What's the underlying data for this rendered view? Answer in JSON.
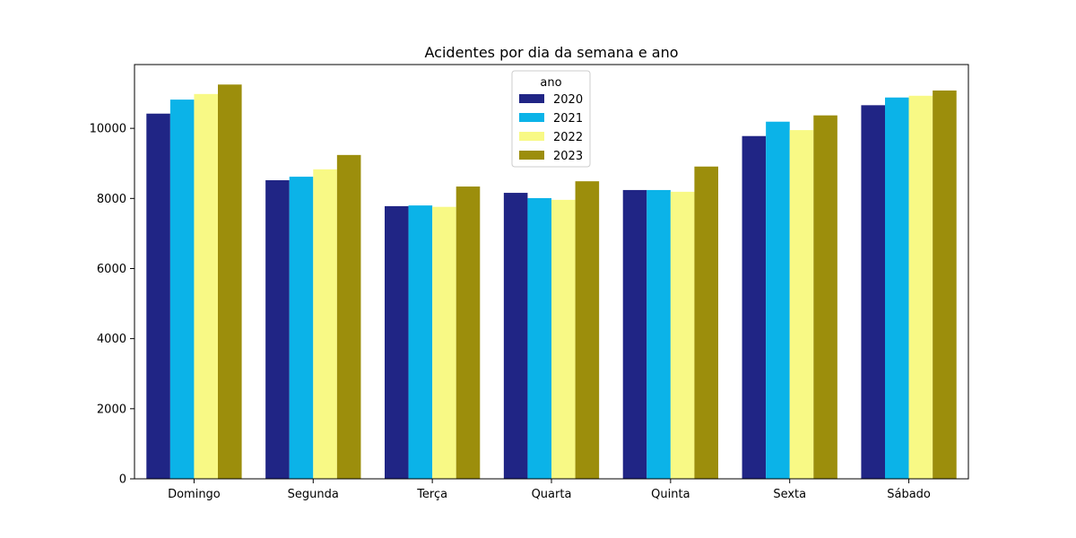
{
  "chart_data": {
    "type": "bar",
    "title": "Acidentes por dia da semana e ano",
    "xlabel": "",
    "ylabel": "",
    "categories": [
      "Domingo",
      "Segunda",
      "Terça",
      "Quarta",
      "Quinta",
      "Sexta",
      "Sábado"
    ],
    "series": [
      {
        "name": "2020",
        "color": "#202585",
        "values": [
          10420,
          8520,
          7780,
          8160,
          8240,
          9780,
          10660
        ]
      },
      {
        "name": "2021",
        "color": "#0bb3e8",
        "values": [
          10820,
          8620,
          7800,
          8010,
          8240,
          10190,
          10880
        ]
      },
      {
        "name": "2022",
        "color": "#f8f985",
        "values": [
          10980,
          8830,
          7760,
          7960,
          8190,
          9950,
          10930
        ]
      },
      {
        "name": "2023",
        "color": "#9c8e0c",
        "values": [
          11250,
          9240,
          8340,
          8490,
          8910,
          10370,
          11080
        ]
      }
    ],
    "ylim": [
      0,
      11820
    ],
    "yticks": [
      0,
      2000,
      4000,
      6000,
      8000,
      10000
    ],
    "grid": false,
    "legend": {
      "title": "ano",
      "placement": "top-center"
    }
  }
}
